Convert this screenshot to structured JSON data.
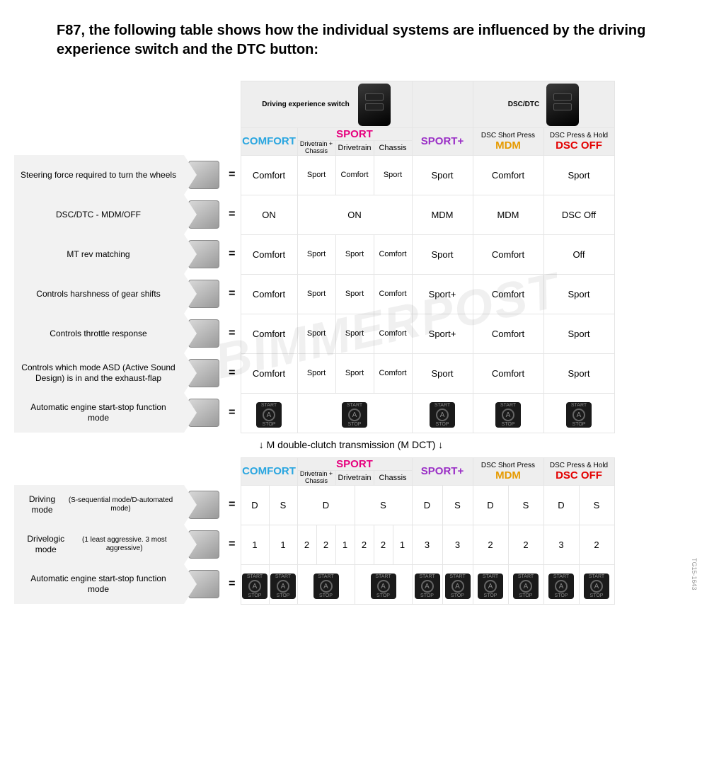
{
  "title": "F87, the following table shows how the individual systems are influenced by the driving experience switch and the DTC button:",
  "watermark": "BIMMERPOST",
  "sideref": "TG15-1643",
  "dct_label": "↓ M double-clutch transmission (M DCT) ↓",
  "group_headers": {
    "driving_switch": "Driving experience switch",
    "dsc_dtc": "DSC/DTC"
  },
  "mode_headers": {
    "comfort": "COMFORT",
    "sport": "SPORT",
    "sport_sub": {
      "a": "Drivetrain + Chassis",
      "b": "Drivetrain",
      "c": "Chassis"
    },
    "sportplus": "SPORT+",
    "mdm_sup": "DSC Short Press",
    "mdm": "MDM",
    "dscoff_sup": "DSC Press & Hold",
    "dscoff": "DSC OFF"
  },
  "rows1": [
    {
      "label": "Steering force required to turn the wheels",
      "cells": [
        "Comfort",
        "Sport",
        "Comfort",
        "Sport",
        "Sport",
        "Comfort",
        "Sport"
      ]
    },
    {
      "label": "DSC/DTC - MDM/OFF",
      "cells": [
        "ON",
        "ON",
        "",
        "",
        "MDM",
        "MDM",
        "DSC Off"
      ],
      "merge_sport": true
    },
    {
      "label": "MT rev matching",
      "cells": [
        "Comfort",
        "Sport",
        "Sport",
        "Comfort",
        "Sport",
        "Comfort",
        "Off"
      ]
    },
    {
      "label": "Controls harshness of gear shifts",
      "cells": [
        "Comfort",
        "Sport",
        "Sport",
        "Comfort",
        "Sport+",
        "Comfort",
        "Sport"
      ]
    },
    {
      "label": "Controls throttle response",
      "cells": [
        "Comfort",
        "Sport",
        "Sport",
        "Comfort",
        "Sport+",
        "Comfort",
        "Sport"
      ]
    },
    {
      "label": "Controls which mode ASD (Active Sound Design) is in and the exhaust-flap",
      "cells": [
        "Comfort",
        "Sport",
        "Sport",
        "Comfort",
        "Sport",
        "Comfort",
        "Sport"
      ]
    },
    {
      "label": "Automatic engine start-stop function mode",
      "ssrow": true
    }
  ],
  "rows2": [
    {
      "label": "Driving mode",
      "sub": "(S-sequential mode/D-automated mode)",
      "pairs": {
        "comfort": [
          "D",
          "S"
        ],
        "sport": {
          "d_span": "D",
          "s_span": "S"
        },
        "sportplus": [
          "D",
          "S"
        ],
        "mdm": [
          "D",
          "S"
        ],
        "dscoff": [
          "D",
          "S"
        ]
      }
    },
    {
      "label": "Drivelogic mode",
      "sub": "(1 least aggressive. 3 most aggressive)",
      "pairs": {
        "comfort": [
          "1",
          "1"
        ],
        "sport_six": [
          "2",
          "2",
          "1",
          "2",
          "2",
          "1"
        ],
        "sportplus": [
          "3",
          "3"
        ],
        "mdm": [
          "2",
          "2"
        ],
        "dscoff": [
          "3",
          "2"
        ]
      }
    },
    {
      "label": "Automatic engine start-stop function mode",
      "ssrow": true
    }
  ],
  "colors": {
    "comfort": "#2aa6e0",
    "sport": "#e6007e",
    "sportplus": "#9a2fc6",
    "mdm": "#e69a00",
    "dscoff": "#e30000",
    "grid": "#e5e5e5",
    "hdr_bg": "#eeeeee",
    "rowlabel_bg": "#f2f2f2"
  },
  "widths": {
    "comfort": 80,
    "sport_sub": 54,
    "sportplus": 86,
    "mdm": 100,
    "dscoff": 100
  }
}
